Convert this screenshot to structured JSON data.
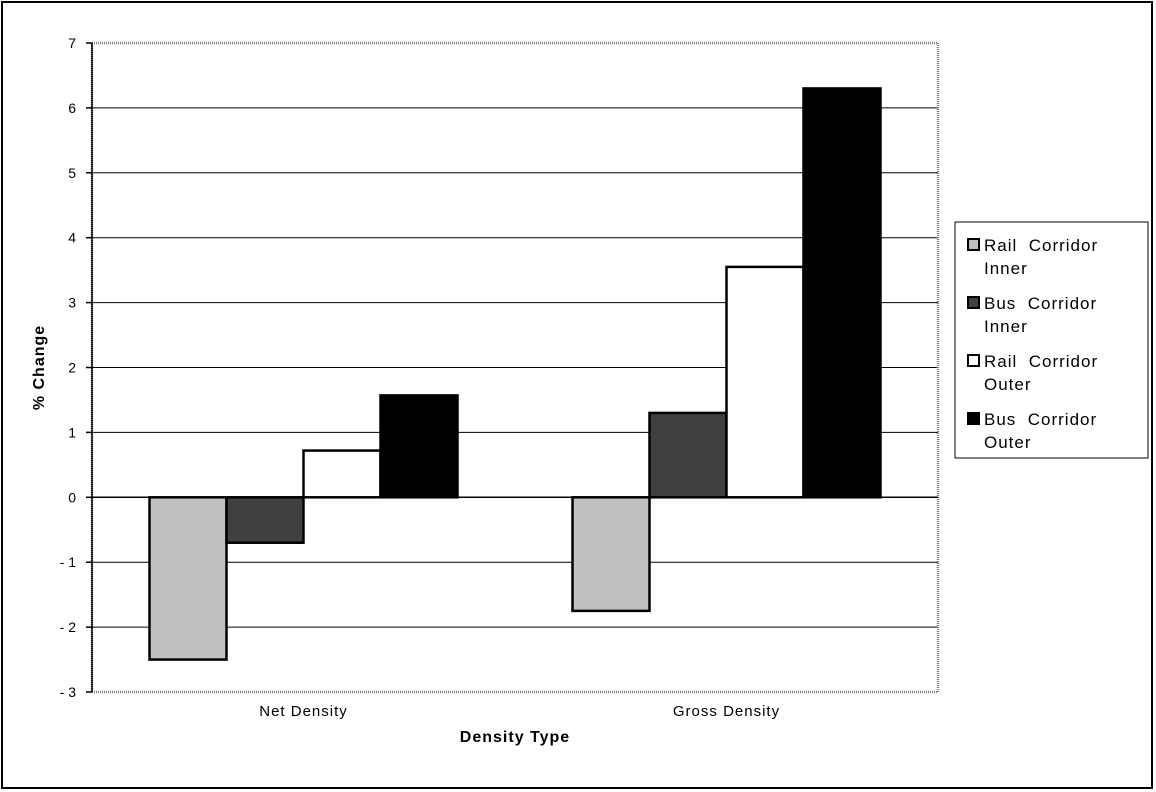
{
  "chart_data": {
    "type": "bar",
    "title": "",
    "xlabel": "Density Type",
    "ylabel": "% Change",
    "categories": [
      "Net Density",
      "Gross Density"
    ],
    "series": [
      {
        "name": "Rail Corridor Inner",
        "values": [
          -2.5,
          -1.75
        ],
        "color": "#c0c0c0"
      },
      {
        "name": "Bus Corridor Inner",
        "values": [
          -0.7,
          1.3
        ],
        "color": "#404040"
      },
      {
        "name": "Rail Corridor Outer",
        "values": [
          0.72,
          3.55
        ],
        "color": "#ffffff"
      },
      {
        "name": "Bus Corridor Outer",
        "values": [
          1.57,
          6.3
        ],
        "color": "#000000"
      }
    ],
    "ylim": [
      -3,
      7
    ],
    "yticks": [
      7,
      6,
      5,
      4,
      3,
      2,
      1,
      0,
      -1,
      -2,
      -3
    ],
    "ytick_labels": [
      "7",
      "6",
      "5",
      "4",
      "3",
      "2",
      "1",
      "0",
      "- 1",
      "- 2",
      "- 3"
    ],
    "grid": true,
    "legend_position": "right",
    "legend": [
      {
        "line1": "Rail  Corridor",
        "line2": "Inner"
      },
      {
        "line1": "Bus  Corridor",
        "line2": "Inner"
      },
      {
        "line1": "Rail  Corridor",
        "line2": "Outer"
      },
      {
        "line1": "Bus  Corridor",
        "line2": "Outer"
      }
    ],
    "category_labels": [
      "Net  Density",
      "Gross  Density"
    ],
    "xlabel_display": "Density   Type"
  }
}
